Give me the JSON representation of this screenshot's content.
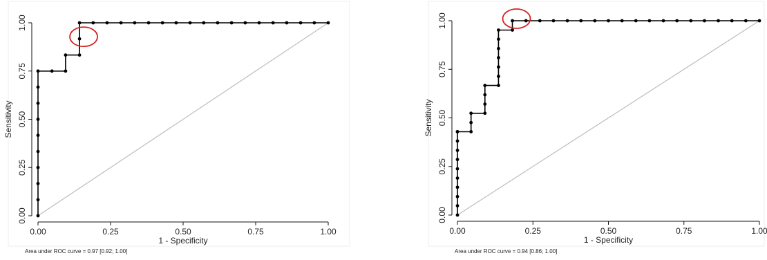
{
  "chart_data": [
    {
      "type": "line",
      "xlabel": "1 - Specificity",
      "ylabel": "Sensitivity",
      "xlim": [
        0,
        1
      ],
      "ylim": [
        0,
        1
      ],
      "x_ticks": [
        "0.00",
        "0.25",
        "0.50",
        "0.75",
        "1.00"
      ],
      "y_ticks": [
        "0.00",
        "0.25",
        "0.50",
        "0.75",
        "1.00"
      ],
      "grid": false,
      "reference_line": {
        "x": [
          0,
          1
        ],
        "y": [
          0,
          1
        ],
        "color": "#bdbdbd"
      },
      "series": [
        {
          "x": [
            0,
            0,
            0,
            0,
            0,
            0,
            0,
            0,
            0,
            0,
            0.048,
            0.095,
            0.095,
            0.143,
            0.143,
            0.143,
            0.19,
            0.238,
            0.286,
            0.333,
            0.381,
            0.429,
            0.476,
            0.524,
            0.571,
            0.619,
            0.667,
            0.714,
            0.762,
            0.81,
            0.857,
            0.905,
            0.952,
            1.0
          ],
          "y": [
            0,
            0.083,
            0.167,
            0.25,
            0.333,
            0.417,
            0.5,
            0.583,
            0.667,
            0.75,
            0.75,
            0.75,
            0.833,
            0.833,
            0.917,
            1.0,
            1.0,
            1.0,
            1.0,
            1.0,
            1.0,
            1.0,
            1.0,
            1.0,
            1.0,
            1.0,
            1.0,
            1.0,
            1.0,
            1.0,
            1.0,
            1.0,
            1.0,
            1.0
          ],
          "color": "#000000"
        }
      ],
      "highlight": {
        "x": 0.143,
        "y": 0.917,
        "color": "#d42020"
      },
      "note": "Area under ROC curve = 0.97 [0.92; 1.00]"
    },
    {
      "type": "line",
      "xlabel": "1 - Specificity",
      "ylabel": "Sensitivity",
      "xlim": [
        0,
        1
      ],
      "ylim": [
        0,
        1
      ],
      "x_ticks": [
        "0.00",
        "0.25",
        "0.50",
        "0.75",
        "1.00"
      ],
      "y_ticks": [
        "0.00",
        "0.25",
        "0.50",
        "0.75",
        "1.00"
      ],
      "grid": false,
      "reference_line": {
        "x": [
          0,
          1
        ],
        "y": [
          0,
          1
        ],
        "color": "#bdbdbd"
      },
      "series": [
        {
          "x": [
            0,
            0,
            0,
            0,
            0,
            0,
            0,
            0,
            0,
            0,
            0,
            0.045,
            0.045,
            0.045,
            0.091,
            0.091,
            0.091,
            0.091,
            0.136,
            0.136,
            0.136,
            0.136,
            0.136,
            0.136,
            0.136,
            0.182,
            0.182,
            0.227,
            0.273,
            0.318,
            0.364,
            0.409,
            0.455,
            0.5,
            0.545,
            0.591,
            0.636,
            0.682,
            0.727,
            0.773,
            0.818,
            0.864,
            0.909,
            0.955,
            1.0
          ],
          "y": [
            0,
            0.048,
            0.095,
            0.143,
            0.19,
            0.238,
            0.286,
            0.333,
            0.381,
            0.429,
            0.429,
            0.429,
            0.476,
            0.524,
            0.524,
            0.571,
            0.619,
            0.667,
            0.667,
            0.714,
            0.762,
            0.81,
            0.857,
            0.905,
            0.952,
            0.952,
            1.0,
            1.0,
            1.0,
            1.0,
            1.0,
            1.0,
            1.0,
            1.0,
            1.0,
            1.0,
            1.0,
            1.0,
            1.0,
            1.0,
            1.0,
            1.0,
            1.0,
            1.0,
            1.0
          ],
          "color": "#000000"
        }
      ],
      "highlight": {
        "x": 0.182,
        "y": 1.0,
        "color": "#d42020"
      },
      "note": "Area under ROC curve = 0.94 [0.86; 1.00]"
    }
  ]
}
